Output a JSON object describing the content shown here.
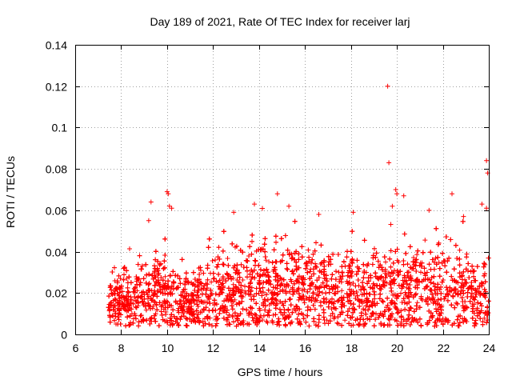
{
  "chart_data": {
    "type": "scatter",
    "title": "Day 189 of 2021, Rate Of TEC Index for receiver larj",
    "xlabel": "GPS time / hours",
    "ylabel": "ROTI / TECUs",
    "xlim": [
      6,
      24
    ],
    "ylim": [
      0,
      0.14
    ],
    "x_ticks": [
      6,
      8,
      10,
      12,
      14,
      16,
      18,
      20,
      22,
      24
    ],
    "y_ticks": [
      0,
      0.02,
      0.04,
      0.06,
      0.08,
      0.1,
      0.12,
      0.14
    ],
    "x_tick_labels": [
      "6",
      "8",
      "10",
      "12",
      "14",
      "16",
      "18",
      "20",
      "22",
      "24"
    ],
    "y_tick_labels": [
      "0",
      "0.02",
      "0.04",
      "0.06",
      "0.08",
      "0.1",
      "0.12",
      "0.14"
    ],
    "grid": true,
    "marker": "+",
    "series_color": "#ff0000",
    "data_range": [
      7.45,
      24.0
    ],
    "density_profile": [
      {
        "x": 7.5,
        "median": 0.016,
        "p90": 0.026
      },
      {
        "x": 8.0,
        "median": 0.016,
        "p90": 0.03
      },
      {
        "x": 8.5,
        "median": 0.017,
        "p90": 0.03
      },
      {
        "x": 9.0,
        "median": 0.019,
        "p90": 0.034
      },
      {
        "x": 9.5,
        "median": 0.02,
        "p90": 0.036
      },
      {
        "x": 10.0,
        "median": 0.018,
        "p90": 0.034
      },
      {
        "x": 10.5,
        "median": 0.016,
        "p90": 0.03
      },
      {
        "x": 11.0,
        "median": 0.015,
        "p90": 0.028
      },
      {
        "x": 11.5,
        "median": 0.018,
        "p90": 0.033
      },
      {
        "x": 12.0,
        "median": 0.02,
        "p90": 0.038
      },
      {
        "x": 12.5,
        "median": 0.021,
        "p90": 0.04
      },
      {
        "x": 13.0,
        "median": 0.02,
        "p90": 0.038
      },
      {
        "x": 13.5,
        "median": 0.021,
        "p90": 0.04
      },
      {
        "x": 14.0,
        "median": 0.022,
        "p90": 0.043
      },
      {
        "x": 14.5,
        "median": 0.021,
        "p90": 0.042
      },
      {
        "x": 15.0,
        "median": 0.02,
        "p90": 0.04
      },
      {
        "x": 15.5,
        "median": 0.021,
        "p90": 0.041
      },
      {
        "x": 16.0,
        "median": 0.021,
        "p90": 0.04
      },
      {
        "x": 16.5,
        "median": 0.022,
        "p90": 0.042
      },
      {
        "x": 17.0,
        "median": 0.021,
        "p90": 0.041
      },
      {
        "x": 17.5,
        "median": 0.02,
        "p90": 0.04
      },
      {
        "x": 18.0,
        "median": 0.02,
        "p90": 0.04
      },
      {
        "x": 18.5,
        "median": 0.02,
        "p90": 0.038
      },
      {
        "x": 19.0,
        "median": 0.019,
        "p90": 0.036
      },
      {
        "x": 19.5,
        "median": 0.02,
        "p90": 0.038
      },
      {
        "x": 20.0,
        "median": 0.021,
        "p90": 0.042
      },
      {
        "x": 20.5,
        "median": 0.022,
        "p90": 0.043
      },
      {
        "x": 21.0,
        "median": 0.022,
        "p90": 0.042
      },
      {
        "x": 21.5,
        "median": 0.022,
        "p90": 0.042
      },
      {
        "x": 22.0,
        "median": 0.021,
        "p90": 0.04
      },
      {
        "x": 22.5,
        "median": 0.02,
        "p90": 0.038
      },
      {
        "x": 23.0,
        "median": 0.019,
        "p90": 0.036
      },
      {
        "x": 23.5,
        "median": 0.019,
        "p90": 0.036
      },
      {
        "x": 24.0,
        "median": 0.018,
        "p90": 0.034
      }
    ],
    "notable_points": [
      {
        "x": 19.6,
        "y": 0.12
      },
      {
        "x": 19.65,
        "y": 0.083
      },
      {
        "x": 23.9,
        "y": 0.084
      },
      {
        "x": 23.95,
        "y": 0.078
      },
      {
        "x": 19.95,
        "y": 0.07
      },
      {
        "x": 20.0,
        "y": 0.068
      },
      {
        "x": 10.0,
        "y": 0.069
      },
      {
        "x": 10.05,
        "y": 0.068
      },
      {
        "x": 14.8,
        "y": 0.068
      },
      {
        "x": 22.4,
        "y": 0.068
      },
      {
        "x": 20.3,
        "y": 0.067
      },
      {
        "x": 9.3,
        "y": 0.064
      },
      {
        "x": 10.1,
        "y": 0.062
      },
      {
        "x": 10.2,
        "y": 0.061
      },
      {
        "x": 13.8,
        "y": 0.063
      },
      {
        "x": 15.3,
        "y": 0.062
      },
      {
        "x": 19.8,
        "y": 0.062
      },
      {
        "x": 23.7,
        "y": 0.063
      },
      {
        "x": 23.9,
        "y": 0.061
      },
      {
        "x": 21.4,
        "y": 0.06
      },
      {
        "x": 12.9,
        "y": 0.059
      },
      {
        "x": 16.6,
        "y": 0.058
      },
      {
        "x": 18.1,
        "y": 0.059
      },
      {
        "x": 9.2,
        "y": 0.055
      },
      {
        "x": 22.9,
        "y": 0.057
      }
    ]
  }
}
